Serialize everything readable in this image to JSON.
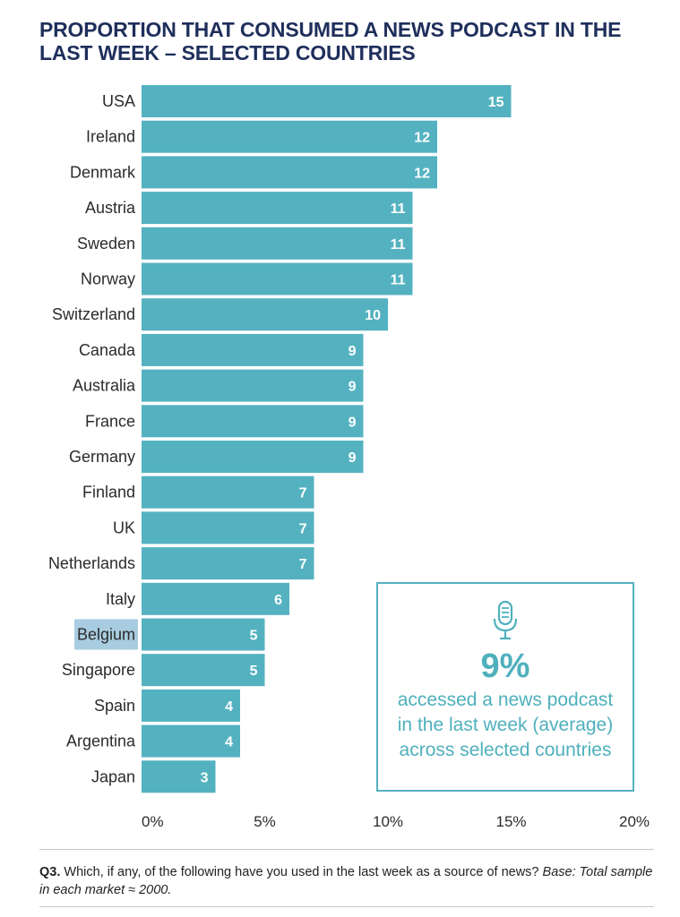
{
  "title_line1": "PROPORTION THAT CONSUMED A NEWS PODCAST IN THE",
  "title_line2": "LAST WEEK – SELECTED COUNTRIES",
  "chart_data": {
    "type": "bar",
    "orientation": "horizontal",
    "title": "PROPORTION THAT CONSUMED A NEWS PODCAST IN THE LAST WEEK – SELECTED COUNTRIES",
    "categories": [
      "USA",
      "Ireland",
      "Denmark",
      "Austria",
      "Sweden",
      "Norway",
      "Switzerland",
      "Canada",
      "Australia",
      "France",
      "Germany",
      "Finland",
      "UK",
      "Netherlands",
      "Italy",
      "Belgium",
      "Singapore",
      "Spain",
      "Argentina",
      "Japan"
    ],
    "values": [
      15,
      12,
      12,
      11,
      11,
      11,
      10,
      9,
      9,
      9,
      9,
      7,
      7,
      7,
      6,
      5,
      5,
      4,
      4,
      3
    ],
    "highlighted_category": "Belgium",
    "xlim": [
      0,
      20
    ],
    "x_ticks": [
      0,
      5,
      10,
      15,
      20
    ],
    "x_tick_labels": [
      "0%",
      "5%",
      "10%",
      "15%",
      "20%"
    ],
    "xlabel": "",
    "ylabel": "",
    "grid": false,
    "bar_color": "#54b2c0",
    "highlight_color": "#a8cce0"
  },
  "callout": {
    "icon": "microphone-icon",
    "value": "9%",
    "line1": "accessed a news podcast",
    "line2": "in the last week (average)",
    "line3": "across selected countries"
  },
  "footnote": {
    "question_label": "Q3.",
    "question_text": "Which, if any, of the following have you used in the last week as a source of news?",
    "base_text": "Base: Total sample in each market ≈ 2000."
  },
  "colors": {
    "title": "#1f2f5c",
    "bar": "#54b2c0",
    "callout": "#4fb0bd"
  }
}
